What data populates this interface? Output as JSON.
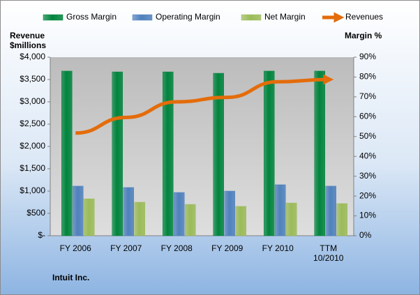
{
  "chart_data": {
    "type": "bar_line",
    "categories": [
      "FY 2006",
      "FY 2007",
      "FY 2008",
      "FY 2009",
      "FY 2010",
      "TTM 10/2010"
    ],
    "series": [
      {
        "name": "Gross Margin",
        "type": "bar",
        "axis": "y2",
        "color": "#00843d",
        "values": [
          83.0,
          82.6,
          82.6,
          81.9,
          83.0,
          83.0
        ]
      },
      {
        "name": "Operating Margin",
        "type": "bar",
        "axis": "y2",
        "color": "#4f81bd",
        "values": [
          25.0,
          24.3,
          21.8,
          22.5,
          25.7,
          25.0
        ]
      },
      {
        "name": "Net Margin",
        "type": "bar",
        "axis": "y2",
        "color": "#9bbb59",
        "values": [
          18.6,
          16.9,
          15.8,
          14.8,
          16.5,
          16.2
        ]
      },
      {
        "name": "Revenues",
        "type": "line",
        "axis": "y",
        "color": "#e46c0a",
        "values": [
          2300,
          2650,
          3000,
          3100,
          3450,
          3500
        ]
      }
    ],
    "ylabel": "Revenue $millions",
    "y2label": "Margin %",
    "footer": "Intuit Inc.",
    "ylim": [
      0,
      4000
    ],
    "yticks": [
      {
        "value": 0,
        "label": "$-"
      },
      {
        "value": 500,
        "label": "$500"
      },
      {
        "value": 1000,
        "label": "$1,000"
      },
      {
        "value": 1500,
        "label": "$1,500"
      },
      {
        "value": 2000,
        "label": "$2,000"
      },
      {
        "value": 2500,
        "label": "$2,500"
      },
      {
        "value": 3000,
        "label": "$3,000"
      },
      {
        "value": 3500,
        "label": "$3,500"
      },
      {
        "value": 4000,
        "label": "$4,000"
      }
    ],
    "y2lim": [
      0,
      90
    ],
    "y2ticks": [
      {
        "value": 0,
        "label": "0%"
      },
      {
        "value": 10,
        "label": "10%"
      },
      {
        "value": 20,
        "label": "20%"
      },
      {
        "value": 30,
        "label": "30%"
      },
      {
        "value": 40,
        "label": "40%"
      },
      {
        "value": 50,
        "label": "50%"
      },
      {
        "value": 60,
        "label": "60%"
      },
      {
        "value": 70,
        "label": "70%"
      },
      {
        "value": 80,
        "label": "80%"
      },
      {
        "value": 90,
        "label": "90%"
      }
    ]
  }
}
